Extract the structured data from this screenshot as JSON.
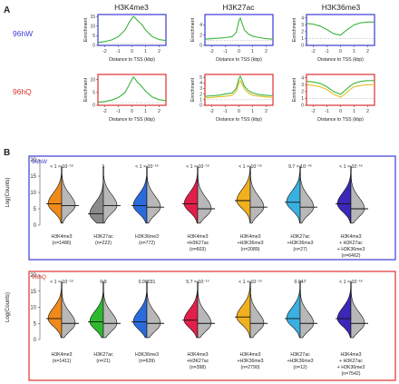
{
  "figure": {
    "panel_a_label": "A",
    "panel_b_label": "B",
    "columns": [
      "H3K4me3",
      "H3K27ac",
      "H3K36me3"
    ],
    "rows": [
      {
        "label": "96hW",
        "color": "#3b3bd6"
      },
      {
        "label": "96hQ",
        "color": "#e03030"
      }
    ]
  },
  "chart_data": [
    {
      "type": "line",
      "panel": "A",
      "xlabel": "Distance to TSS (kbp)",
      "ylabel": "Enrichment",
      "xlim": [
        -2.5,
        2.5
      ],
      "xticks": [
        -2,
        -1,
        0,
        1,
        2
      ],
      "series_colors": {
        "primary": "#3cb43c",
        "secondary": "#e0c020",
        "baseline": "#b0b0b0"
      },
      "subplots": [
        {
          "row": "96hW",
          "column": "H3K4me3",
          "ylim": [
            0,
            16
          ],
          "yticks": [
            0,
            5,
            10,
            15
          ],
          "x": [
            -2.5,
            -2,
            -1.5,
            -1,
            -0.5,
            -0.2,
            0,
            0.1,
            0.2,
            0.4,
            0.7,
            1,
            1.5,
            2,
            2.5
          ],
          "primary": [
            1.5,
            2,
            2.8,
            4.5,
            8,
            12,
            14,
            15,
            14.5,
            13,
            11,
            8,
            4.5,
            3,
            2.5
          ]
        },
        {
          "row": "96hW",
          "column": "H3K27ac",
          "ylim": [
            0,
            6
          ],
          "yticks": [
            0,
            2,
            4
          ],
          "x": [
            -2.5,
            -2,
            -1.5,
            -1,
            -0.5,
            -0.2,
            0,
            0.1,
            0.2,
            0.4,
            0.7,
            1,
            1.5,
            2,
            2.5
          ],
          "primary": [
            1.2,
            1.3,
            1.4,
            1.5,
            1.7,
            2.5,
            4.8,
            5.3,
            4.5,
            3,
            2.2,
            1.8,
            1.5,
            1.3,
            1.2
          ]
        },
        {
          "row": "96hW",
          "column": "H3K36me3",
          "ylim": [
            0,
            4.5
          ],
          "yticks": [
            0,
            1,
            2,
            3,
            4
          ],
          "x": [
            -2.5,
            -2,
            -1.5,
            -1,
            -0.5,
            0,
            0.3,
            0.7,
            1,
            1.5,
            2,
            2.5
          ],
          "primary": [
            3.2,
            3.1,
            2.8,
            2.3,
            1.7,
            1.5,
            2,
            2.6,
            3,
            3.3,
            3.4,
            3.4
          ]
        },
        {
          "row": "96hQ",
          "column": "H3K4me3",
          "ylim": [
            0,
            12
          ],
          "yticks": [
            0,
            5,
            10
          ],
          "x": [
            -2.5,
            -2,
            -1.5,
            -1,
            -0.5,
            -0.2,
            0,
            0.1,
            0.2,
            0.4,
            0.7,
            1,
            1.5,
            2,
            2.5
          ],
          "primary": [
            1.2,
            1.5,
            2,
            3,
            5,
            8,
            10,
            11,
            10.5,
            9,
            7.5,
            5.5,
            3.2,
            2.2,
            1.8
          ]
        },
        {
          "row": "96hQ",
          "column": "H3K27ac",
          "ylim": [
            0,
            5.5
          ],
          "yticks": [
            0,
            1,
            2,
            3,
            4,
            5
          ],
          "x": [
            -2.5,
            -2,
            -1.5,
            -1,
            -0.5,
            -0.2,
            0,
            0.1,
            0.2,
            0.4,
            0.7,
            1,
            1.5,
            2,
            2.5
          ],
          "primary": [
            1.6,
            1.7,
            1.8,
            2,
            2.2,
            3,
            4.8,
            5.2,
            4.6,
            3.4,
            2.6,
            2.2,
            1.9,
            1.8,
            1.7
          ],
          "secondary": [
            1.3,
            1.4,
            1.5,
            1.6,
            1.8,
            2.5,
            4,
            4.4,
            3.9,
            2.9,
            2.2,
            1.8,
            1.6,
            1.5,
            1.4
          ]
        },
        {
          "row": "96hQ",
          "column": "H3K36me3",
          "ylim": [
            0,
            4.5
          ],
          "yticks": [
            0,
            1,
            2,
            3,
            4
          ],
          "x": [
            -2.5,
            -2,
            -1.5,
            -1,
            -0.5,
            0,
            0.3,
            0.7,
            1,
            1.5,
            2,
            2.5
          ],
          "primary": [
            3.5,
            3.4,
            3.2,
            2.7,
            2,
            1.6,
            2.1,
            2.8,
            3.2,
            3.5,
            3.6,
            3.6
          ],
          "secondary": [
            3,
            2.9,
            2.7,
            2.3,
            1.6,
            1.2,
            1.6,
            2.3,
            2.7,
            2.9,
            3,
            3
          ]
        }
      ]
    },
    {
      "type": "violin",
      "panel": "B",
      "ylabel": "Log(Counts)",
      "ylim": [
        0,
        20
      ],
      "yticks": [
        0,
        5,
        10,
        15,
        20
      ],
      "groups": [
        {
          "label": "96hW",
          "color": "#3b3bd6",
          "categories": [
            {
              "name": "H3K4me3",
              "n": "(n=1486)",
              "p": "< 1 × 10⁻¹⁶",
              "color": "#f08a1a",
              "median": 6.5,
              "other_median": 6.0
            },
            {
              "name": "H3K27ac",
              "n": "(n=222)",
              "p": "1",
              "color": "#8a8a8a",
              "median": 3.5,
              "other_median": 6.0
            },
            {
              "name": "H3K36me3",
              "n": "(n=772)",
              "p": "< 1 × 10⁻¹⁶",
              "color": "#2a6bdc",
              "median": 6.0,
              "other_median": 5.5
            },
            {
              "name": "H3K4me3\n+H3K27ac",
              "n": "(n=603)",
              "p": "< 1 × 10⁻¹⁶",
              "color": "#e0204a",
              "median": 6.5,
              "other_median": 5.0
            },
            {
              "name": "H3K4me3\n+H3K36me3",
              "n": "(n=2089)",
              "p": "< 1 × 10⁻¹⁶",
              "color": "#f0b020",
              "median": 7.5,
              "other_median": 5.5
            },
            {
              "name": "H3K27ac\n+H3K36me3",
              "n": "(n=27)",
              "p": "9.7 × 10⁻⁰⁵",
              "color": "#3ab0e0",
              "median": 7.0,
              "other_median": 5.5
            },
            {
              "name": "H3K4me3\n+ H3K27ac\n+ H3K36me3",
              "n": "(n=6462)",
              "p": "< 1 × 10⁻¹⁶",
              "color": "#3a28b8",
              "median": 6.5,
              "other_median": 5.0
            }
          ]
        },
        {
          "label": "96hQ",
          "color": "#e03030",
          "categories": [
            {
              "name": "H3K4me3",
              "n": "(n=1411)",
              "p": "< 1 × 10⁻¹⁶",
              "color": "#f08a1a",
              "median": 6.5,
              "other_median": 5.0
            },
            {
              "name": "H3K27ac",
              "n": "(n=21)",
              "p": "0.9",
              "color": "#2eb82e",
              "median": 5.5,
              "other_median": 5.0
            },
            {
              "name": "H3K36me3",
              "n": "(n=639)",
              "p": "0.00031",
              "color": "#2a6bdc",
              "median": 5.5,
              "other_median": 5.0
            },
            {
              "name": "H3K4me3\n+H3K27ac",
              "n": "(n=398)",
              "p": "5.7 × 10⁻¹⁰",
              "color": "#e0204a",
              "median": 6.0,
              "other_median": 5.0
            },
            {
              "name": "H3K4me3\n+H3K36me3",
              "n": "(n=2790)",
              "p": "< 1 × 10⁻¹⁶",
              "color": "#f0b020",
              "median": 7.0,
              "other_median": 5.0
            },
            {
              "name": "H3K27ac\n+H3K36me3",
              "n": "(n=12)",
              "p": "0.047",
              "color": "#3ab0e0",
              "median": 6.5,
              "other_median": 5.0
            },
            {
              "name": "H3K4me3\n+ H3K27ac\n+ H3K36me3",
              "n": "(n=7542)",
              "p": "< 1 × 10⁻¹⁶",
              "color": "#3a28b8",
              "median": 6.5,
              "other_median": 5.0
            }
          ]
        }
      ]
    }
  ]
}
